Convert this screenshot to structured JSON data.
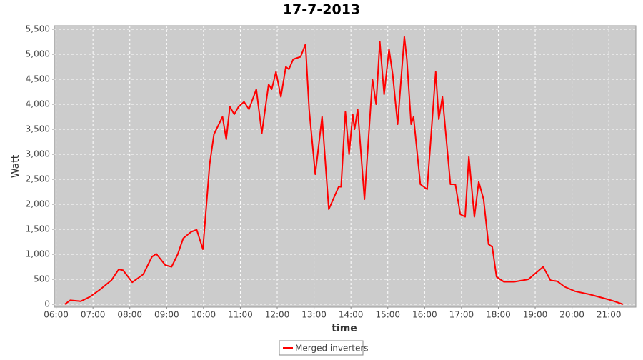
{
  "chart_data": {
    "type": "line",
    "title": "17-7-2013",
    "xlabel": "time",
    "ylabel": "Watt",
    "x": [
      "06:14",
      "06:23",
      "06:40",
      "06:55",
      "07:12",
      "07:30",
      "07:42",
      "07:49",
      "08:04",
      "08:22",
      "08:36",
      "08:43",
      "08:58",
      "09:08",
      "09:18",
      "09:27",
      "09:40",
      "09:49",
      "09:59",
      "10:10",
      "10:17",
      "10:31",
      "10:37",
      "10:43",
      "10:50",
      "10:57",
      "11:06",
      "11:14",
      "11:26",
      "11:35",
      "11:46",
      "11:51",
      "11:58",
      "12:06",
      "12:14",
      "12:19",
      "12:26",
      "12:38",
      "12:46",
      "12:52",
      "13:02",
      "13:13",
      "13:24",
      "13:40",
      "13:44",
      "13:51",
      "13:57",
      "14:03",
      "14:06",
      "14:11",
      "14:22",
      "14:35",
      "14:41",
      "14:47",
      "14:54",
      "15:02",
      "15:08",
      "15:16",
      "15:27",
      "15:31",
      "15:38",
      "15:42",
      "15:53",
      "16:04",
      "16:18",
      "16:23",
      "16:29",
      "16:42",
      "16:50",
      "16:58",
      "17:06",
      "17:12",
      "17:21",
      "17:28",
      "17:36",
      "17:44",
      "17:50",
      "17:57",
      "18:09",
      "18:26",
      "18:49",
      "19:13",
      "19:25",
      "19:36",
      "19:48",
      "20:05",
      "20:28",
      "20:58",
      "21:09",
      "21:23"
    ],
    "series": [
      {
        "name": "Merged inverters",
        "color": "#ff0000",
        "values": [
          0,
          80,
          60,
          150,
          300,
          480,
          700,
          680,
          440,
          600,
          950,
          1010,
          780,
          750,
          1000,
          1320,
          1450,
          1490,
          1100,
          2800,
          3400,
          3750,
          3300,
          3950,
          3800,
          3950,
          4050,
          3900,
          4300,
          3420,
          4400,
          4300,
          4650,
          4150,
          4750,
          4700,
          4900,
          4950,
          5200,
          3900,
          2600,
          3750,
          1900,
          2350,
          2350,
          3850,
          3000,
          3800,
          3500,
          3900,
          2100,
          4500,
          4000,
          5250,
          4200,
          5100,
          4600,
          3600,
          5350,
          4900,
          3600,
          3750,
          2400,
          2300,
          4650,
          3700,
          4150,
          2400,
          2400,
          1800,
          1750,
          2950,
          1750,
          2450,
          2100,
          1200,
          1150,
          550,
          450,
          450,
          500,
          750,
          480,
          460,
          350,
          260,
          200,
          100,
          60,
          0
        ]
      }
    ],
    "xlim": [
      "05:57",
      "21:44"
    ],
    "xticks": [
      "06:00",
      "07:00",
      "08:00",
      "09:00",
      "10:00",
      "11:00",
      "12:00",
      "13:00",
      "14:00",
      "15:00",
      "16:00",
      "17:00",
      "18:00",
      "19:00",
      "20:00",
      "21:00"
    ],
    "ylim": [
      -57,
      5571
    ],
    "yticks": [
      0,
      500,
      {
        "value": 1000,
        "label": "1,000"
      },
      {
        "value": 1500,
        "label": "1,500"
      },
      {
        "value": 2000,
        "label": "2,000"
      },
      {
        "value": 2500,
        "label": "2,500"
      },
      {
        "value": 3000,
        "label": "3,000"
      },
      {
        "value": 3500,
        "label": "3,500"
      },
      {
        "value": 4000,
        "label": "4,000"
      },
      {
        "value": 4500,
        "label": "4,500"
      },
      {
        "value": 5000,
        "label": "5,000"
      },
      {
        "value": 5500,
        "label": "5,500"
      }
    ],
    "grid": true
  }
}
